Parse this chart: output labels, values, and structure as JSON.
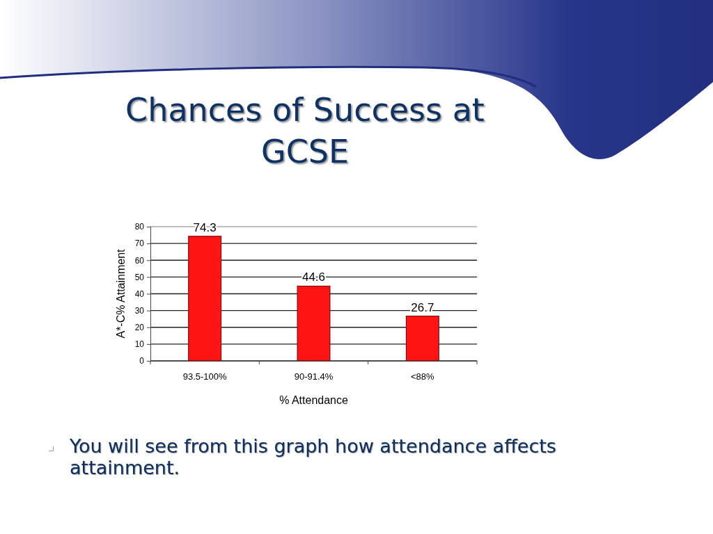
{
  "chart_data": {
    "type": "bar",
    "title": "Chances of Success at GCSE",
    "xlabel": "% Attendance",
    "ylabel": "A*-C% Attainment",
    "categories": [
      "93.5-100%",
      "90-91.4%",
      "<88%"
    ],
    "values": [
      74.3,
      44.6,
      26.7
    ],
    "color": "#ff1414",
    "ylim": [
      0,
      80
    ],
    "yticks": [
      0,
      10,
      20,
      30,
      40,
      50,
      60,
      70,
      80
    ],
    "grid": "y",
    "data_labels": true,
    "annotations": [
      "You will see from this graph how attendance affects attainment."
    ]
  }
}
